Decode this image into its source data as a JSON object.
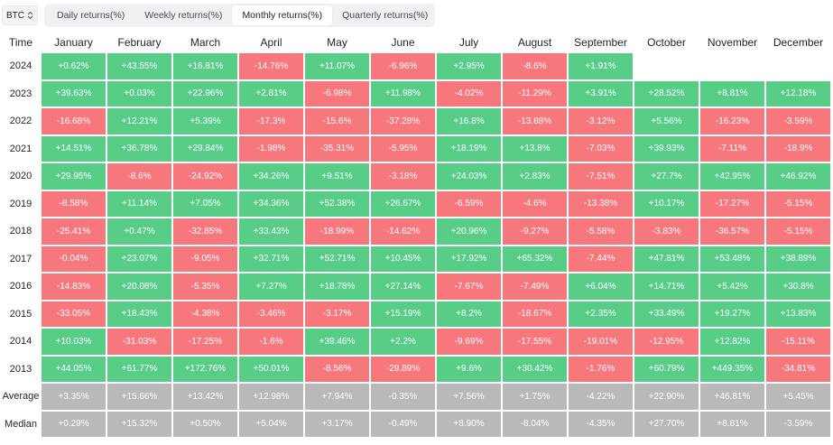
{
  "controls": {
    "coin": "BTC",
    "tabs": [
      {
        "label": "Daily returns(%)",
        "active": false
      },
      {
        "label": "Weekly returns(%)",
        "active": false
      },
      {
        "label": "Monthly returns(%)",
        "active": true
      },
      {
        "label": "Quarterly returns(%)",
        "active": false
      }
    ]
  },
  "colors": {
    "positive": "#58cd88",
    "negative": "#f6777c",
    "summary": "#b9b9b9"
  },
  "table": {
    "time_header": "Time",
    "months": [
      "January",
      "February",
      "March",
      "April",
      "May",
      "June",
      "July",
      "August",
      "September",
      "October",
      "November",
      "December"
    ],
    "rows": [
      {
        "year": "2024",
        "values": [
          "+0.62%",
          "+43.55%",
          "+16.81%",
          "-14.76%",
          "+11.07%",
          "-6.96%",
          "+2.95%",
          "-8.6%",
          "+1.91%",
          "",
          "",
          ""
        ]
      },
      {
        "year": "2023",
        "values": [
          "+39.63%",
          "+0.03%",
          "+22.96%",
          "+2.81%",
          "-6.98%",
          "+11.98%",
          "-4.02%",
          "-11.29%",
          "+3.91%",
          "+28.52%",
          "+8.81%",
          "+12.18%"
        ]
      },
      {
        "year": "2022",
        "values": [
          "-16.68%",
          "+12.21%",
          "+5.39%",
          "-17.3%",
          "-15.6%",
          "-37.28%",
          "+16.8%",
          "-13.88%",
          "-3.12%",
          "+5.56%",
          "-16.23%",
          "-3.59%"
        ]
      },
      {
        "year": "2021",
        "values": [
          "+14.51%",
          "+36.78%",
          "+29.84%",
          "-1.98%",
          "-35.31%",
          "-5.95%",
          "+18.19%",
          "+13.8%",
          "-7.03%",
          "+39.93%",
          "-7.11%",
          "-18.9%"
        ]
      },
      {
        "year": "2020",
        "values": [
          "+29.95%",
          "-8.6%",
          "-24.92%",
          "+34.26%",
          "+9.51%",
          "-3.18%",
          "+24.03%",
          "+2.83%",
          "-7.51%",
          "+27.7%",
          "+42.95%",
          "+46.92%"
        ]
      },
      {
        "year": "2019",
        "values": [
          "-8.58%",
          "+11.14%",
          "+7.05%",
          "+34.36%",
          "+52.38%",
          "+26.67%",
          "-6.59%",
          "-4.6%",
          "-13.38%",
          "+10.17%",
          "-17.27%",
          "-5.15%"
        ]
      },
      {
        "year": "2018",
        "values": [
          "-25.41%",
          "+0.47%",
          "-32.85%",
          "+33.43%",
          "-18.99%",
          "-14.62%",
          "+20.96%",
          "-9.27%",
          "-5.58%",
          "-3.83%",
          "-36.57%",
          "-5.15%"
        ]
      },
      {
        "year": "2017",
        "values": [
          "-0.04%",
          "+23.07%",
          "-9.05%",
          "+32.71%",
          "+52.71%",
          "+10.45%",
          "+17.92%",
          "+65.32%",
          "-7.44%",
          "+47.81%",
          "+53.48%",
          "+38.89%"
        ]
      },
      {
        "year": "2016",
        "values": [
          "-14.83%",
          "+20.08%",
          "-5.35%",
          "+7.27%",
          "+18.78%",
          "+27.14%",
          "-7.67%",
          "-7.49%",
          "+6.04%",
          "+14.71%",
          "+5.42%",
          "+30.8%"
        ]
      },
      {
        "year": "2015",
        "values": [
          "-33.05%",
          "+18.43%",
          "-4.38%",
          "-3.46%",
          "-3.17%",
          "+15.19%",
          "+8.2%",
          "-18.67%",
          "+2.35%",
          "+33.49%",
          "+19.27%",
          "+13.83%"
        ]
      },
      {
        "year": "2014",
        "values": [
          "+10.03%",
          "-31.03%",
          "-17.25%",
          "-1.6%",
          "+39.46%",
          "+2.2%",
          "-9.69%",
          "-17.55%",
          "-19.01%",
          "-12.95%",
          "+12.82%",
          "-15.11%"
        ]
      },
      {
        "year": "2013",
        "values": [
          "+44.05%",
          "+61.77%",
          "+172.76%",
          "+50.01%",
          "-8.56%",
          "-29.89%",
          "+9.6%",
          "+30.42%",
          "-1.76%",
          "+60.79%",
          "+449.35%",
          "-34.81%"
        ]
      }
    ],
    "summary": [
      {
        "label": "Average",
        "values": [
          "+3.35%",
          "+15.66%",
          "+13.42%",
          "+12.98%",
          "+7.94%",
          "-0.35%",
          "+7.56%",
          "+1.75%",
          "-4.22%",
          "+22.90%",
          "+46.81%",
          "+5.45%"
        ]
      },
      {
        "label": "Median",
        "values": [
          "+0.29%",
          "+15.32%",
          "+0.50%",
          "+5.04%",
          "+3.17%",
          "-0.49%",
          "+8.90%",
          "-8.04%",
          "-4.35%",
          "+27.70%",
          "+8.81%",
          "-3.59%"
        ]
      }
    ]
  }
}
